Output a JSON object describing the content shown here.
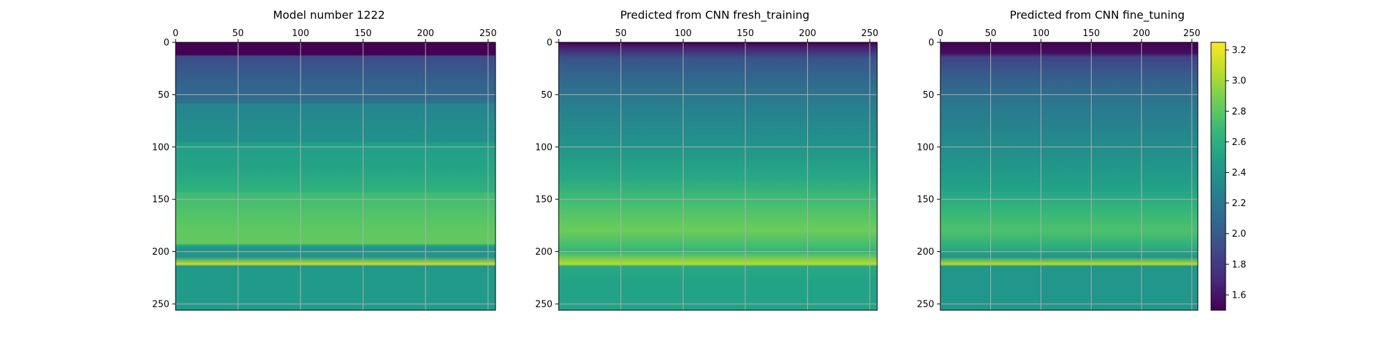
{
  "chart_data": [
    {
      "type": "heatmap",
      "title": "Model number 1222",
      "x_ticks": [
        "0",
        "50",
        "100",
        "150",
        "200",
        "250"
      ],
      "y_ticks": [
        "0",
        "50",
        "100",
        "150",
        "200",
        "250"
      ],
      "x_tick_values": [
        0,
        50,
        100,
        150,
        200,
        250
      ],
      "y_tick_values": [
        0,
        50,
        100,
        150,
        200,
        250
      ],
      "xlim": [
        0,
        256
      ],
      "ylim": [
        256,
        0
      ],
      "x_axis_position": "top",
      "grid": true,
      "colormap": "viridis",
      "profile_rows": [
        0,
        12,
        13,
        30,
        50,
        58,
        59,
        75,
        95,
        96,
        120,
        143,
        144,
        160,
        175,
        192,
        194,
        196,
        205,
        212,
        214,
        220,
        256
      ],
      "profile_values": [
        1.5,
        1.5,
        1.9,
        2.0,
        2.1,
        2.15,
        2.3,
        2.33,
        2.38,
        2.48,
        2.52,
        2.62,
        2.7,
        2.75,
        2.8,
        2.82,
        2.55,
        2.4,
        2.4,
        3.1,
        2.4,
        2.45,
        2.45
      ]
    },
    {
      "type": "heatmap",
      "title": "Predicted from CNN fresh_training",
      "x_ticks": [
        "0",
        "50",
        "100",
        "150",
        "200",
        "250"
      ],
      "y_ticks": [
        "0",
        "50",
        "100",
        "150",
        "200",
        "250"
      ],
      "x_tick_values": [
        0,
        50,
        100,
        150,
        200,
        250
      ],
      "y_tick_values": [
        0,
        50,
        100,
        150,
        200,
        250
      ],
      "xlim": [
        0,
        256
      ],
      "ylim": [
        256,
        0
      ],
      "x_axis_position": "top",
      "grid": true,
      "colormap": "viridis",
      "profile_rows": [
        0,
        5,
        15,
        30,
        60,
        100,
        130,
        150,
        165,
        180,
        200,
        212,
        214,
        230,
        256
      ],
      "profile_values": [
        1.5,
        1.65,
        1.95,
        2.05,
        2.25,
        2.4,
        2.55,
        2.7,
        2.78,
        2.85,
        2.65,
        3.05,
        2.55,
        2.5,
        2.5
      ]
    },
    {
      "type": "heatmap",
      "title": "Predicted from CNN fine_tuning",
      "x_ticks": [
        "0",
        "50",
        "100",
        "150",
        "200",
        "250"
      ],
      "y_ticks": [
        "0",
        "50",
        "100",
        "150",
        "200",
        "250"
      ],
      "x_tick_values": [
        0,
        50,
        100,
        150,
        200,
        250
      ],
      "y_tick_values": [
        0,
        50,
        100,
        150,
        200,
        250
      ],
      "xlim": [
        0,
        256
      ],
      "ylim": [
        256,
        0
      ],
      "x_axis_position": "top",
      "grid": true,
      "colormap": "viridis",
      "profile_rows": [
        0,
        10,
        14,
        30,
        60,
        100,
        140,
        160,
        180,
        195,
        205,
        212,
        214,
        256
      ],
      "profile_values": [
        1.5,
        1.55,
        1.85,
        2.0,
        2.2,
        2.35,
        2.5,
        2.65,
        2.75,
        2.6,
        2.42,
        3.05,
        2.42,
        2.42
      ]
    }
  ],
  "colorbar": {
    "ticks": [
      "1.6",
      "1.8",
      "2.0",
      "2.2",
      "2.4",
      "2.6",
      "2.8",
      "3.0",
      "3.2"
    ],
    "tick_values": [
      1.6,
      1.8,
      2.0,
      2.2,
      2.4,
      2.6,
      2.8,
      3.0,
      3.2
    ],
    "range": [
      1.5,
      3.25
    ]
  }
}
